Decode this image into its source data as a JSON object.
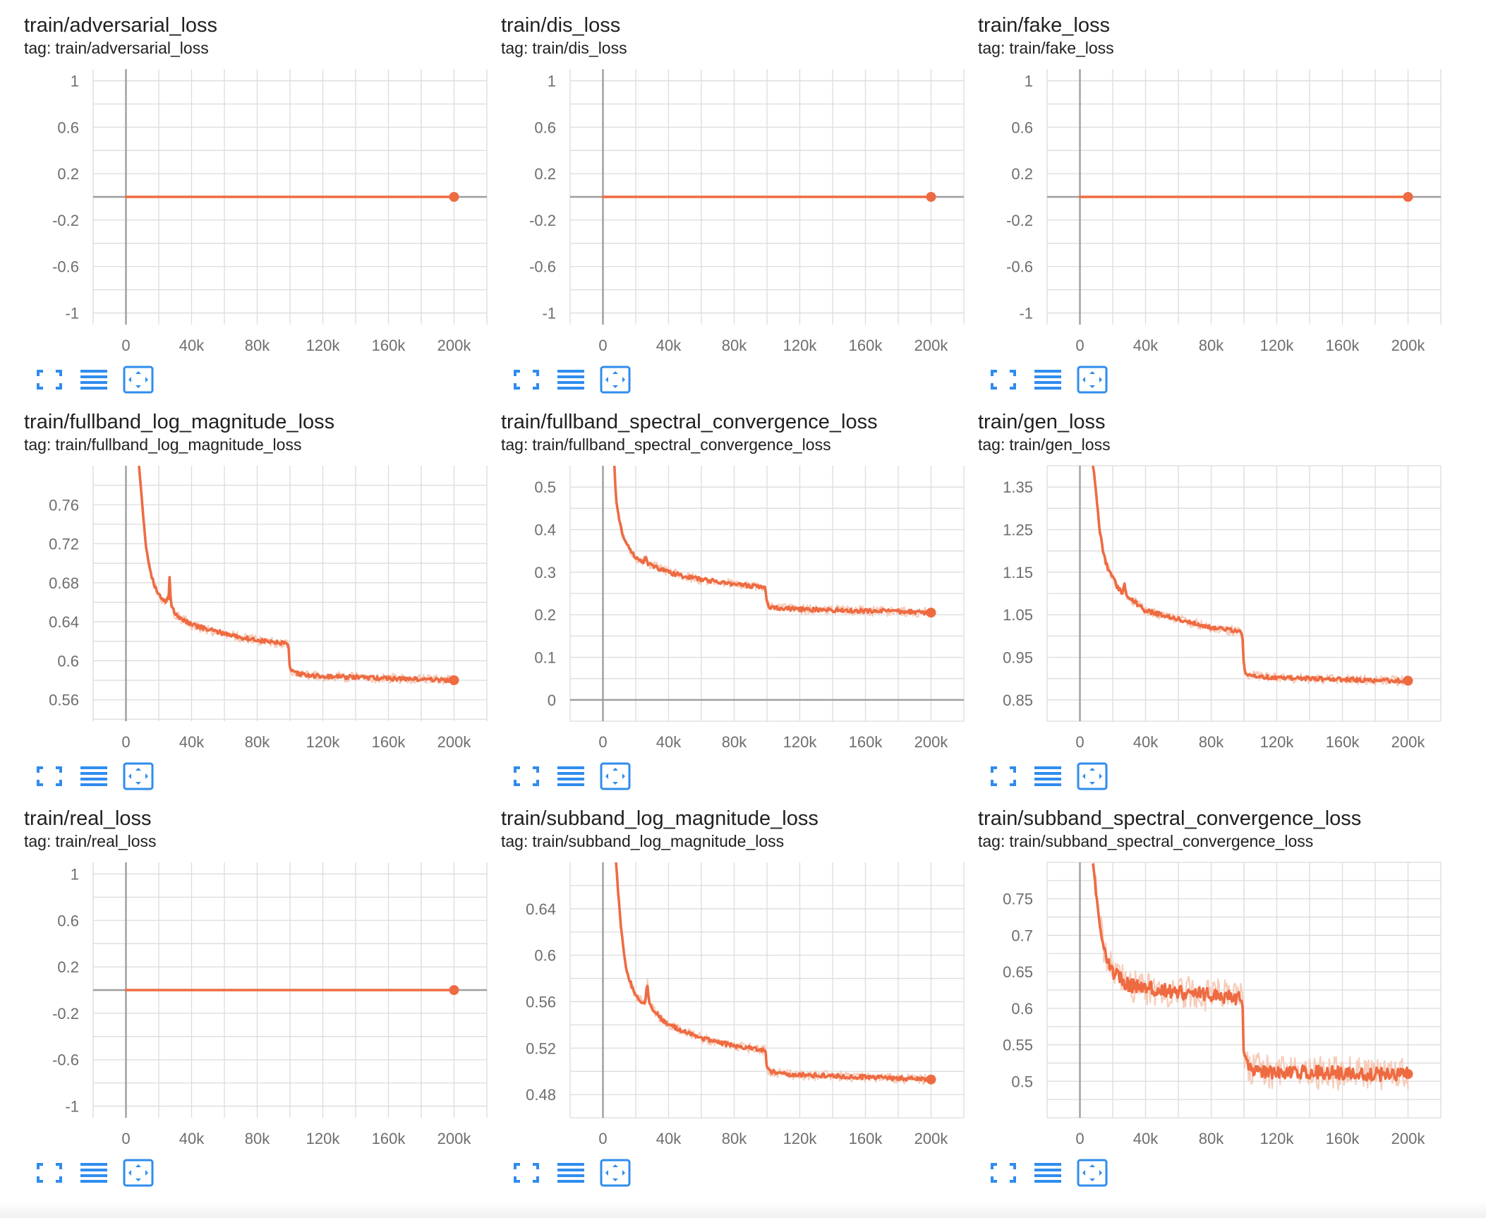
{
  "tag_prefix": "tag:",
  "colors": {
    "series": "#ee6b42",
    "series_raw": "#f6c6b3",
    "grid": "#dcdcdc",
    "axis": "#9e9e9e",
    "icon": "#2f8cee"
  },
  "toolbar_icons": [
    "expand-icon",
    "list-icon",
    "fit-to-data-icon"
  ],
  "chart_data": [
    {
      "type": "line",
      "title": "train/adversarial_loss",
      "tag": "train/adversarial_loss",
      "xlabel": "",
      "ylabel": "",
      "xlim": [
        -20000,
        220000
      ],
      "ylim": [
        -1.1,
        1.1
      ],
      "xticks": [
        0,
        40000,
        80000,
        120000,
        160000,
        200000
      ],
      "xtick_labels": [
        "0",
        "40k",
        "80k",
        "120k",
        "160k",
        "200k"
      ],
      "yticks": [
        1,
        0.6,
        0.2,
        -0.2,
        -0.6,
        -1
      ],
      "ytick_labels": [
        "1",
        "0.6",
        "0.2",
        "-0.2",
        "-0.6",
        "-1"
      ],
      "ygrid": [
        1,
        0.8,
        0.6,
        0.4,
        0.2,
        0,
        -0.2,
        -0.4,
        -0.6,
        -0.8,
        -1
      ],
      "grid": true,
      "series": [
        {
          "x": [
            0,
            200000
          ],
          "y": [
            0,
            0
          ]
        }
      ]
    },
    {
      "type": "line",
      "title": "train/dis_loss",
      "tag": "train/dis_loss",
      "xlabel": "",
      "ylabel": "",
      "xlim": [
        -20000,
        220000
      ],
      "ylim": [
        -1.1,
        1.1
      ],
      "xticks": [
        0,
        40000,
        80000,
        120000,
        160000,
        200000
      ],
      "xtick_labels": [
        "0",
        "40k",
        "80k",
        "120k",
        "160k",
        "200k"
      ],
      "yticks": [
        1,
        0.6,
        0.2,
        -0.2,
        -0.6,
        -1
      ],
      "ytick_labels": [
        "1",
        "0.6",
        "0.2",
        "-0.2",
        "-0.6",
        "-1"
      ],
      "ygrid": [
        1,
        0.8,
        0.6,
        0.4,
        0.2,
        0,
        -0.2,
        -0.4,
        -0.6,
        -0.8,
        -1
      ],
      "grid": true,
      "series": [
        {
          "x": [
            0,
            200000
          ],
          "y": [
            0,
            0
          ]
        }
      ]
    },
    {
      "type": "line",
      "title": "train/fake_loss",
      "tag": "train/fake_loss",
      "xlabel": "",
      "ylabel": "",
      "xlim": [
        -20000,
        220000
      ],
      "ylim": [
        -1.1,
        1.1
      ],
      "xticks": [
        0,
        40000,
        80000,
        120000,
        160000,
        200000
      ],
      "xtick_labels": [
        "0",
        "40k",
        "80k",
        "120k",
        "160k",
        "200k"
      ],
      "yticks": [
        1,
        0.6,
        0.2,
        -0.2,
        -0.6,
        -1
      ],
      "ytick_labels": [
        "1",
        "0.6",
        "0.2",
        "-0.2",
        "-0.6",
        "-1"
      ],
      "ygrid": [
        1,
        0.8,
        0.6,
        0.4,
        0.2,
        0,
        -0.2,
        -0.4,
        -0.6,
        -0.8,
        -1
      ],
      "grid": true,
      "series": [
        {
          "x": [
            0,
            200000
          ],
          "y": [
            0,
            0
          ]
        }
      ]
    },
    {
      "type": "line",
      "title": "train/fullband_log_magnitude_loss",
      "tag": "train/fullband_log_magnitude_loss",
      "xlabel": "",
      "ylabel": "",
      "xlim": [
        -20000,
        220000
      ],
      "ylim": [
        0.538,
        0.8
      ],
      "xticks": [
        0,
        40000,
        80000,
        120000,
        160000,
        200000
      ],
      "xtick_labels": [
        "0",
        "40k",
        "80k",
        "120k",
        "160k",
        "200k"
      ],
      "yticks": [
        0.76,
        0.72,
        0.68,
        0.64,
        0.6,
        0.56
      ],
      "ytick_labels": [
        "0.76",
        "0.72",
        "0.68",
        "0.64",
        "0.6",
        "0.56"
      ],
      "ygrid": [
        0.78,
        0.76,
        0.74,
        0.72,
        0.7,
        0.68,
        0.66,
        0.64,
        0.62,
        0.6,
        0.58,
        0.56,
        0.54
      ],
      "grid": true,
      "series": [
        {
          "x": [
            8000,
            10000,
            12000,
            14000,
            16000,
            18000,
            20000,
            22000,
            24000,
            26000,
            26500,
            27000,
            28000,
            30000,
            35000,
            40000,
            50000,
            60000,
            70000,
            80000,
            90000,
            99000,
            100000,
            102000,
            110000,
            120000,
            140000,
            160000,
            180000,
            200000
          ],
          "y": [
            0.8,
            0.76,
            0.72,
            0.7,
            0.685,
            0.675,
            0.668,
            0.663,
            0.66,
            0.665,
            0.69,
            0.668,
            0.655,
            0.648,
            0.642,
            0.637,
            0.632,
            0.628,
            0.624,
            0.621,
            0.619,
            0.617,
            0.59,
            0.588,
            0.585,
            0.584,
            0.583,
            0.582,
            0.581,
            0.58
          ]
        }
      ]
    },
    {
      "type": "line",
      "title": "train/fullband_spectral_convergence_loss",
      "tag": "train/fullband_spectral_convergence_loss",
      "xlabel": "",
      "ylabel": "",
      "xlim": [
        -20000,
        220000
      ],
      "ylim": [
        -0.05,
        0.55
      ],
      "xticks": [
        0,
        40000,
        80000,
        120000,
        160000,
        200000
      ],
      "xtick_labels": [
        "0",
        "40k",
        "80k",
        "120k",
        "160k",
        "200k"
      ],
      "yticks": [
        0.5,
        0.4,
        0.3,
        0.2,
        0.1,
        0
      ],
      "ytick_labels": [
        "0.5",
        "0.4",
        "0.3",
        "0.2",
        "0.1",
        "0"
      ],
      "ygrid": [
        0.5,
        0.45,
        0.4,
        0.35,
        0.3,
        0.25,
        0.2,
        0.15,
        0.1,
        0.05,
        0,
        -0.05
      ],
      "grid": true,
      "series": [
        {
          "x": [
            7000,
            8000,
            10000,
            12000,
            14000,
            16000,
            18000,
            20000,
            25000,
            26000,
            27000,
            30000,
            40000,
            50000,
            60000,
            70000,
            80000,
            90000,
            99000,
            100000,
            102000,
            110000,
            120000,
            140000,
            160000,
            180000,
            200000
          ],
          "y": [
            0.55,
            0.47,
            0.42,
            0.39,
            0.37,
            0.355,
            0.345,
            0.335,
            0.325,
            0.34,
            0.322,
            0.315,
            0.3,
            0.29,
            0.283,
            0.278,
            0.272,
            0.268,
            0.265,
            0.225,
            0.218,
            0.215,
            0.213,
            0.211,
            0.209,
            0.208,
            0.205
          ]
        }
      ]
    },
    {
      "type": "line",
      "title": "train/gen_loss",
      "tag": "train/gen_loss",
      "xlabel": "",
      "ylabel": "",
      "xlim": [
        -20000,
        220000
      ],
      "ylim": [
        0.8,
        1.4
      ],
      "xticks": [
        0,
        40000,
        80000,
        120000,
        160000,
        200000
      ],
      "xtick_labels": [
        "0",
        "40k",
        "80k",
        "120k",
        "160k",
        "200k"
      ],
      "yticks": [
        1.35,
        1.25,
        1.15,
        1.05,
        0.95,
        0.85
      ],
      "ytick_labels": [
        "1.35",
        "1.25",
        "1.15",
        "1.05",
        "0.95",
        "0.85"
      ],
      "ygrid": [
        1.4,
        1.35,
        1.3,
        1.25,
        1.2,
        1.15,
        1.1,
        1.05,
        1.0,
        0.95,
        0.9,
        0.85,
        0.8
      ],
      "grid": true,
      "series": [
        {
          "x": [
            8000,
            10000,
            12000,
            14000,
            16000,
            18000,
            20000,
            22000,
            24000,
            26000,
            27000,
            28000,
            30000,
            35000,
            40000,
            50000,
            60000,
            70000,
            80000,
            90000,
            99000,
            100000,
            102000,
            110000,
            120000,
            140000,
            160000,
            180000,
            200000
          ],
          "y": [
            1.4,
            1.33,
            1.25,
            1.2,
            1.17,
            1.15,
            1.14,
            1.12,
            1.11,
            1.1,
            1.13,
            1.1,
            1.09,
            1.075,
            1.06,
            1.05,
            1.04,
            1.03,
            1.02,
            1.015,
            1.01,
            0.92,
            0.91,
            0.905,
            0.902,
            0.9,
            0.898,
            0.896,
            0.895
          ]
        }
      ]
    },
    {
      "type": "line",
      "title": "train/real_loss",
      "tag": "train/real_loss",
      "xlabel": "",
      "ylabel": "",
      "xlim": [
        -20000,
        220000
      ],
      "ylim": [
        -1.1,
        1.1
      ],
      "xticks": [
        0,
        40000,
        80000,
        120000,
        160000,
        200000
      ],
      "xtick_labels": [
        "0",
        "40k",
        "80k",
        "120k",
        "160k",
        "200k"
      ],
      "yticks": [
        1,
        0.6,
        0.2,
        -0.2,
        -0.6,
        -1
      ],
      "ytick_labels": [
        "1",
        "0.6",
        "0.2",
        "-0.2",
        "-0.6",
        "-1"
      ],
      "ygrid": [
        1,
        0.8,
        0.6,
        0.4,
        0.2,
        0,
        -0.2,
        -0.4,
        -0.6,
        -0.8,
        -1
      ],
      "grid": true,
      "series": [
        {
          "x": [
            0,
            200000
          ],
          "y": [
            0,
            0
          ]
        }
      ]
    },
    {
      "type": "line",
      "title": "train/subband_log_magnitude_loss",
      "tag": "train/subband_log_magnitude_loss",
      "xlabel": "",
      "ylabel": "",
      "xlim": [
        -20000,
        220000
      ],
      "ylim": [
        0.46,
        0.68
      ],
      "xticks": [
        0,
        40000,
        80000,
        120000,
        160000,
        200000
      ],
      "xtick_labels": [
        "0",
        "40k",
        "80k",
        "120k",
        "160k",
        "200k"
      ],
      "yticks": [
        0.64,
        0.6,
        0.56,
        0.52,
        0.48
      ],
      "ytick_labels": [
        "0.64",
        "0.6",
        "0.56",
        "0.52",
        "0.48"
      ],
      "ygrid": [
        0.66,
        0.64,
        0.62,
        0.6,
        0.58,
        0.56,
        0.54,
        0.52,
        0.5,
        0.48,
        0.46
      ],
      "grid": true,
      "series": [
        {
          "x": [
            8000,
            10000,
            12000,
            14000,
            16000,
            18000,
            20000,
            22000,
            25000,
            26000,
            27000,
            28000,
            30000,
            35000,
            40000,
            50000,
            60000,
            70000,
            80000,
            90000,
            99000,
            100000,
            102000,
            110000,
            120000,
            140000,
            160000,
            180000,
            200000
          ],
          "y": [
            0.68,
            0.64,
            0.61,
            0.59,
            0.58,
            0.572,
            0.566,
            0.562,
            0.558,
            0.56,
            0.578,
            0.562,
            0.554,
            0.546,
            0.54,
            0.534,
            0.529,
            0.525,
            0.522,
            0.52,
            0.518,
            0.502,
            0.5,
            0.498,
            0.497,
            0.496,
            0.495,
            0.494,
            0.493
          ]
        }
      ]
    },
    {
      "type": "line",
      "title": "train/subband_spectral_convergence_loss",
      "tag": "train/subband_spectral_convergence_loss",
      "xlabel": "",
      "ylabel": "",
      "xlim": [
        -20000,
        220000
      ],
      "ylim": [
        0.45,
        0.8
      ],
      "xticks": [
        0,
        40000,
        80000,
        120000,
        160000,
        200000
      ],
      "xtick_labels": [
        "0",
        "40k",
        "80k",
        "120k",
        "160k",
        "200k"
      ],
      "yticks": [
        0.75,
        0.7,
        0.65,
        0.6,
        0.55,
        0.5
      ],
      "ytick_labels": [
        "0.75",
        "0.7",
        "0.65",
        "0.6",
        "0.55",
        "0.5"
      ],
      "ygrid": [
        0.8,
        0.775,
        0.75,
        0.725,
        0.7,
        0.675,
        0.65,
        0.625,
        0.6,
        0.575,
        0.55,
        0.525,
        0.5,
        0.475,
        0.45
      ],
      "grid": true,
      "series": [
        {
          "x": [
            8000,
            10000,
            12000,
            14000,
            16000,
            18000,
            20000,
            25000,
            30000,
            40000,
            50000,
            60000,
            70000,
            80000,
            90000,
            99000,
            100000,
            102000,
            110000,
            120000,
            140000,
            160000,
            180000,
            200000
          ],
          "y": [
            0.8,
            0.76,
            0.72,
            0.69,
            0.67,
            0.66,
            0.65,
            0.64,
            0.632,
            0.628,
            0.625,
            0.622,
            0.62,
            0.618,
            0.616,
            0.614,
            0.53,
            0.52,
            0.515,
            0.513,
            0.512,
            0.511,
            0.51,
            0.51
          ]
        }
      ]
    }
  ]
}
